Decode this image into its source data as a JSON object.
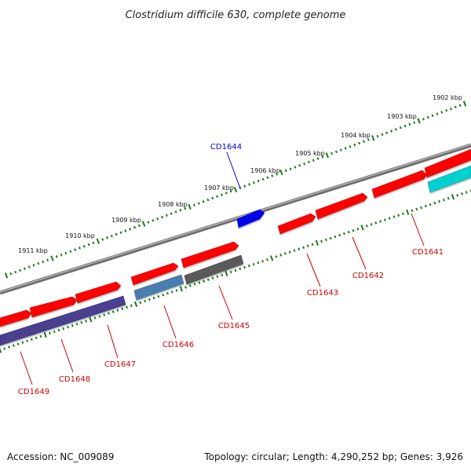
{
  "title": "Clostridium difficile 630, complete genome",
  "accession": "Accession: NC_009089",
  "topology": "Topology: circular; Length: 4,290,252 bp; Genes: 3,926",
  "colors": {
    "backbone": "#7a7a7a",
    "ticks": "#1a7a1a",
    "red": "#ff0000",
    "blue": "#0000ff",
    "cyan": "#00cccc",
    "steel": "#4682b4",
    "slate": "#483d8b",
    "gray": "#555555",
    "label_red": "#cc0000",
    "label_blue": "#0000cc"
  },
  "kbp_labels": [
    "1902 kbp",
    "1903 kbp",
    "1904 kbp",
    "1905 kbp",
    "1906 kbp",
    "1907 kbp",
    "1908 kbp",
    "1909 kbp",
    "1910 kbp",
    "1911 kbp"
  ],
  "genes": [
    {
      "label": "CD1641",
      "color": "label_red"
    },
    {
      "label": "CD1642",
      "color": "label_red"
    },
    {
      "label": "CD1643",
      "color": "label_red"
    },
    {
      "label": "CD1644",
      "color": "label_blue"
    },
    {
      "label": "CD1645",
      "color": "label_red"
    },
    {
      "label": "CD1646",
      "color": "label_red"
    },
    {
      "label": "CD1647",
      "color": "label_red"
    },
    {
      "label": "CD1648",
      "color": "label_red"
    },
    {
      "label": "CD1649",
      "color": "label_red"
    }
  ]
}
